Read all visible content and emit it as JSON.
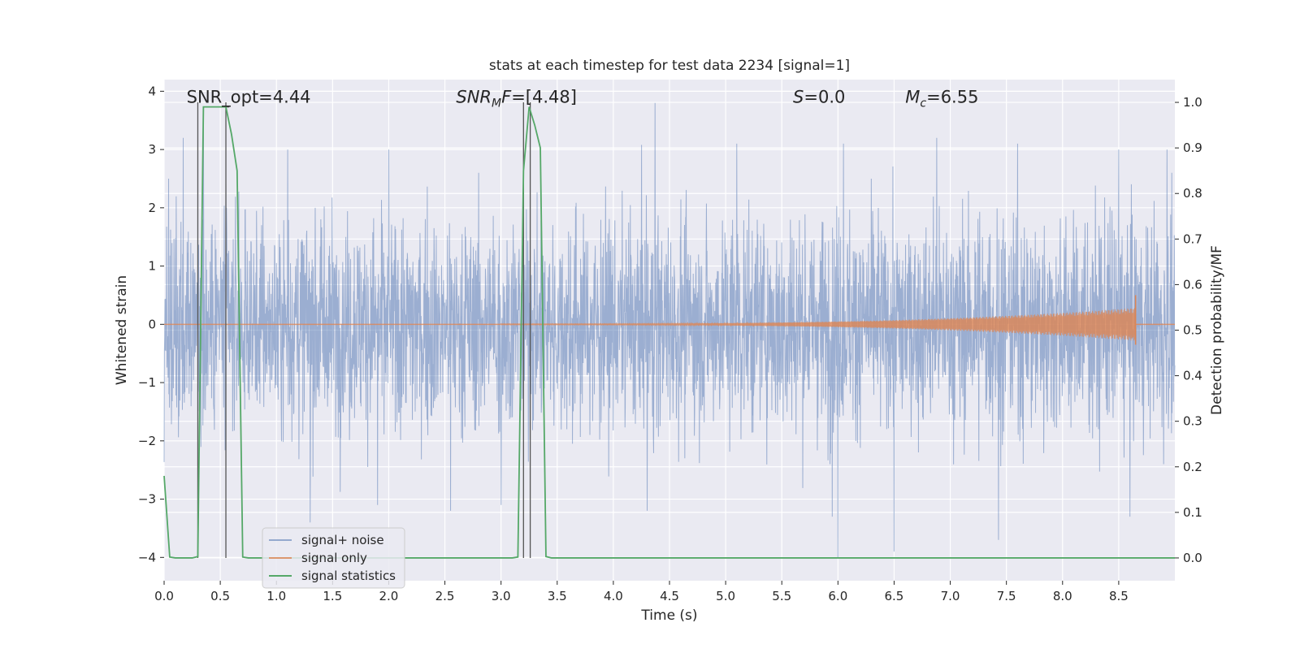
{
  "chart_data": {
    "type": "line",
    "title": "stats at each timestep for test data 2234 [signal=1]",
    "xlabel": "Time (s)",
    "ylabel_left": "Whitened strain",
    "ylabel_right": "Detection probability/MF",
    "xlim": [
      0.0,
      9.0
    ],
    "ylim_left": [
      -4.4,
      4.2
    ],
    "ylim_right": [
      -0.05,
      1.05
    ],
    "x_ticks": [
      "0.0",
      "0.5",
      "1.0",
      "1.5",
      "2.0",
      "2.5",
      "3.0",
      "3.5",
      "4.0",
      "4.5",
      "5.0",
      "5.5",
      "6.0",
      "6.5",
      "7.0",
      "7.5",
      "8.0",
      "8.5"
    ],
    "y_ticks_left": [
      "4",
      "3",
      "2",
      "1",
      "0",
      "−1",
      "−2",
      "−3",
      "−4"
    ],
    "y_ticks_right": [
      "1.0",
      "0.9",
      "0.8",
      "0.7",
      "0.6",
      "0.5",
      "0.4",
      "0.3",
      "0.2",
      "0.1",
      "0.0"
    ],
    "annotations": [
      {
        "text": "SNR_opt=4.44",
        "x": 0.2,
        "y": 3.9
      },
      {
        "text": "SNR",
        "sub": "M",
        "after": "F=[4.48]",
        "x": 2.6,
        "y": 3.9,
        "italic": true
      },
      {
        "text": "S",
        "after": "=0.0",
        "x": 5.6,
        "y": 3.9,
        "italic": true
      },
      {
        "text": "M",
        "sub": "c",
        "after": "=6.55",
        "x": 6.6,
        "y": 3.9,
        "italic": true
      }
    ],
    "legend": {
      "placement": "lower-left",
      "entries": [
        "signal+ noise",
        "signal only",
        "signal statistics"
      ]
    },
    "grid": true,
    "colors": {
      "signal_noise": "#4c72b0",
      "signal_only": "#dd8452",
      "signal_statistics": "#55a868",
      "plot_bg": "#eaeaf2",
      "vline": "#555555"
    },
    "vlines_x": [
      0.3,
      0.55,
      3.2,
      3.26
    ],
    "series": [
      {
        "name": "signal+ noise",
        "axis": "left",
        "kind": "noise",
        "x_range": [
          0.0,
          9.0
        ],
        "amplitude_sigma": 0.9,
        "peaks": [
          {
            "x": 0.04,
            "y": 2.5
          },
          {
            "x": 0.17,
            "y": 3.2
          },
          {
            "x": 0.35,
            "y": 3.6
          },
          {
            "x": 0.55,
            "y": 2.4
          },
          {
            "x": 1.1,
            "y": 3.0
          },
          {
            "x": 2.0,
            "y": 3.0
          },
          {
            "x": 3.0,
            "y": 3.2
          },
          {
            "x": 4.37,
            "y": 3.8
          },
          {
            "x": 5.1,
            "y": 3.1
          },
          {
            "x": 6.05,
            "y": 3.1
          },
          {
            "x": 6.88,
            "y": 3.2
          },
          {
            "x": 7.6,
            "y": 3.1
          },
          {
            "x": 8.5,
            "y": 3.0
          },
          {
            "x": 8.93,
            "y": 3.0
          },
          {
            "x": 1.3,
            "y": -3.4
          },
          {
            "x": 1.9,
            "y": -3.1
          },
          {
            "x": 2.55,
            "y": -3.2
          },
          {
            "x": 3.0,
            "y": -3.1
          },
          {
            "x": 4.3,
            "y": -3.2
          },
          {
            "x": 5.95,
            "y": -3.3
          },
          {
            "x": 6.0,
            "y": -4.0
          },
          {
            "x": 6.5,
            "y": -3.9
          },
          {
            "x": 7.43,
            "y": -3.7
          },
          {
            "x": 8.6,
            "y": -3.3
          },
          {
            "x": 8.9,
            "y": -2.4
          }
        ]
      },
      {
        "name": "signal only",
        "axis": "left",
        "kind": "chirp",
        "start_x": 3.0,
        "end_x": 8.65,
        "end_amplitude": 0.5,
        "peak_x": 8.65
      },
      {
        "name": "signal statistics",
        "axis": "right",
        "x": [
          0.0,
          0.05,
          0.1,
          0.15,
          0.2,
          0.25,
          0.3,
          0.35,
          0.4,
          0.45,
          0.5,
          0.55,
          0.6,
          0.65,
          0.7,
          0.75,
          0.8,
          3.1,
          3.15,
          3.2,
          3.25,
          3.3,
          3.35,
          3.4,
          3.45,
          9.0
        ],
        "y": [
          0.18,
          0.002,
          0.0,
          0.0,
          0.0,
          0.0,
          0.003,
          0.99,
          0.99,
          0.99,
          0.99,
          0.99,
          0.93,
          0.85,
          0.002,
          0.0,
          0.0,
          0.0,
          0.002,
          0.85,
          0.99,
          0.95,
          0.9,
          0.003,
          0.0,
          0.0
        ]
      }
    ]
  }
}
